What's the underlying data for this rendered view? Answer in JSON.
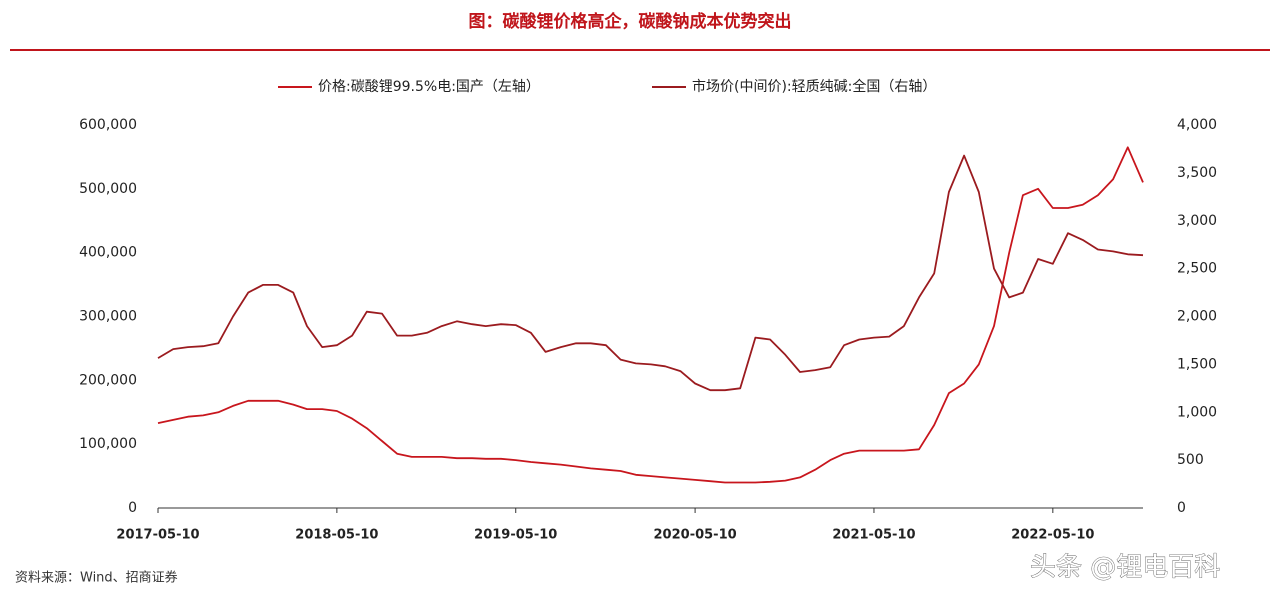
{
  "chart_data": {
    "type": "line",
    "title": "图：碳酸锂价格高企，碳酸钠成本优势突出",
    "source": "资料来源：Wind、招商证券",
    "watermark": "头条 @锂电百科",
    "x": [
      "2017-05-10",
      "2017-06-10",
      "2017-07-10",
      "2017-08-10",
      "2017-09-10",
      "2017-10-10",
      "2017-11-10",
      "2017-12-10",
      "2018-01-10",
      "2018-02-10",
      "2018-03-10",
      "2018-04-10",
      "2018-05-10",
      "2018-06-10",
      "2018-07-10",
      "2018-08-10",
      "2018-09-10",
      "2018-10-10",
      "2018-11-10",
      "2018-12-10",
      "2019-01-10",
      "2019-02-10",
      "2019-03-10",
      "2019-04-10",
      "2019-05-10",
      "2019-06-10",
      "2019-07-10",
      "2019-08-10",
      "2019-09-10",
      "2019-10-10",
      "2019-11-10",
      "2019-12-10",
      "2020-01-10",
      "2020-02-10",
      "2020-03-10",
      "2020-04-10",
      "2020-05-10",
      "2020-06-10",
      "2020-07-10",
      "2020-08-10",
      "2020-09-10",
      "2020-10-10",
      "2020-11-10",
      "2020-12-10",
      "2021-01-10",
      "2021-02-10",
      "2021-03-10",
      "2021-04-10",
      "2021-05-10",
      "2021-06-10",
      "2021-07-10",
      "2021-08-10",
      "2021-09-10",
      "2021-10-10",
      "2021-11-10",
      "2021-12-10",
      "2022-01-10",
      "2022-02-10",
      "2022-03-10",
      "2022-04-10",
      "2022-05-10",
      "2022-06-10",
      "2022-07-10",
      "2022-08-10",
      "2022-09-10",
      "2022-10-10",
      "2022-11-10"
    ],
    "xlim": [
      "2017-05-10",
      "2022-11-10"
    ],
    "xticks": [
      "2017-05-10",
      "2018-05-10",
      "2019-05-10",
      "2020-05-10",
      "2021-05-10",
      "2022-05-10"
    ],
    "ylim": [
      0,
      600000
    ],
    "yticks": [
      0,
      {
        "value": 100000,
        "label": "100,000"
      },
      {
        "value": 200000,
        "label": "200,000"
      },
      {
        "value": 300000,
        "label": "300,000"
      },
      {
        "value": 400000,
        "label": "400,000"
      },
      {
        "value": 500000,
        "label": "500,000"
      },
      {
        "value": 600000,
        "label": "600,000"
      }
    ],
    "y2lim": [
      0,
      4000
    ],
    "y2ticks": [
      0,
      500,
      {
        "value": 1000,
        "label": "1,000"
      },
      {
        "value": 1500,
        "label": "1,500"
      },
      {
        "value": 2000,
        "label": "2,000"
      },
      {
        "value": 2500,
        "label": "2,500"
      },
      {
        "value": 3000,
        "label": "3,000"
      },
      {
        "value": 3500,
        "label": "3,500"
      },
      {
        "value": 4000,
        "label": "4,000"
      }
    ],
    "series": [
      {
        "name": "价格:碳酸锂99.5%电:国产（左轴）",
        "color": "#c8161d",
        "axis": "y",
        "values": [
          133000,
          138000,
          143000,
          145000,
          150000,
          160000,
          168000,
          168000,
          168000,
          162000,
          155000,
          155000,
          152000,
          140000,
          125000,
          105000,
          85000,
          80000,
          80000,
          80000,
          78000,
          78000,
          77000,
          77000,
          75000,
          72000,
          70000,
          68000,
          65000,
          62000,
          60000,
          58000,
          52000,
          50000,
          48000,
          46000,
          44000,
          42000,
          40000,
          40000,
          40000,
          41000,
          43000,
          48000,
          60000,
          75000,
          85000,
          90000,
          90000,
          90000,
          90000,
          92000,
          130000,
          180000,
          195000,
          225000,
          285000,
          400000,
          490000,
          500000,
          470000,
          470000,
          475000,
          490000,
          515000,
          565000,
          510000
        ]
      },
      {
        "name": "市场价(中间价):轻质纯碱:全国（右轴）",
        "color": "#9b1b1f",
        "axis": "y2",
        "values": [
          1566,
          1660,
          1680,
          1690,
          1720,
          2000,
          2250,
          2330,
          2330,
          2250,
          1900,
          1680,
          1700,
          1800,
          2050,
          2030,
          1800,
          1800,
          1830,
          1900,
          1950,
          1920,
          1900,
          1920,
          1910,
          1830,
          1630,
          1680,
          1720,
          1720,
          1700,
          1550,
          1510,
          1500,
          1480,
          1430,
          1300,
          1230,
          1230,
          1250,
          1780,
          1760,
          1600,
          1420,
          1440,
          1470,
          1700,
          1760,
          1780,
          1790,
          1900,
          2200,
          2450,
          3300,
          3680,
          3300,
          2500,
          2200,
          2250,
          2600,
          2550,
          2870,
          2800,
          2700,
          2680,
          2650,
          2640
        ]
      }
    ]
  }
}
